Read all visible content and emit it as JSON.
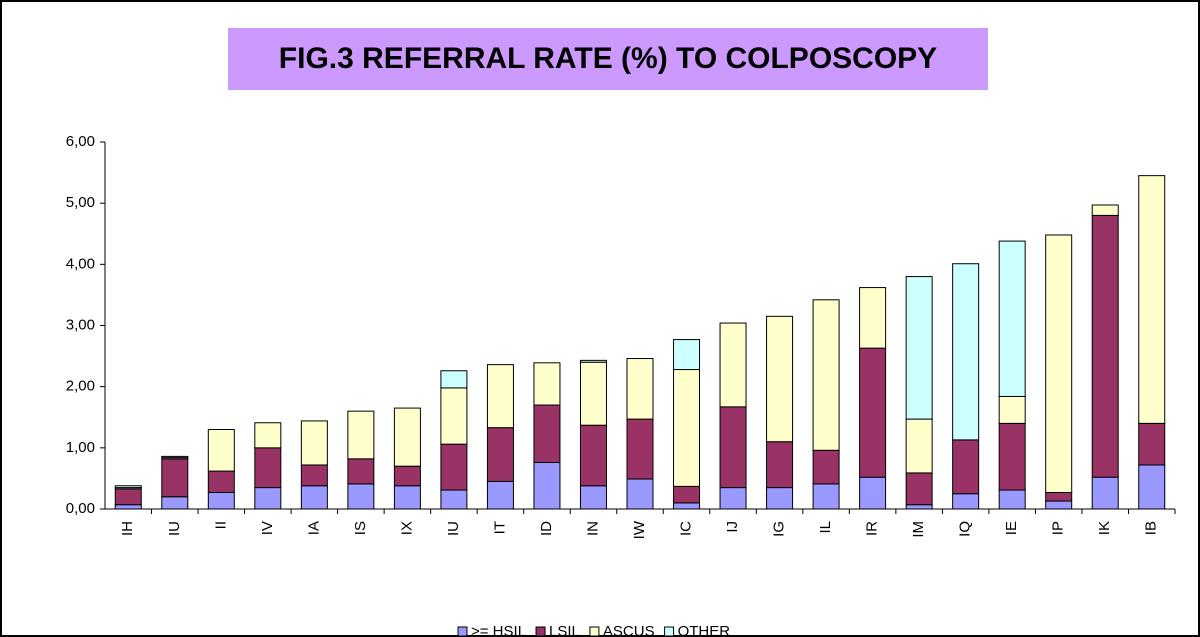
{
  "chart_data": {
    "type": "bar",
    "stacked": true,
    "title": "FIG.3 REFERRAL RATE (%) TO COLPOSCOPY",
    "categories": [
      "IH",
      "IU",
      "II",
      "IV",
      "IA",
      "IS",
      "IX",
      "IU",
      "IT",
      "ID",
      "IN",
      "IW",
      "IC",
      "IJ",
      "IG",
      "IL",
      "IR",
      "IM",
      "IQ",
      "IE",
      "IP",
      "IK",
      "IB"
    ],
    "series": [
      {
        "name": ">= HSIL",
        "color": "#9999ff",
        "values": [
          0.07,
          0.2,
          0.27,
          0.35,
          0.38,
          0.41,
          0.38,
          0.31,
          0.45,
          0.76,
          0.38,
          0.49,
          0.1,
          0.35,
          0.35,
          0.41,
          0.52,
          0.07,
          0.25,
          0.31,
          0.13,
          0.52,
          0.72
        ]
      },
      {
        "name": "LSIL",
        "color": "#993366",
        "values": [
          0.26,
          0.62,
          0.35,
          0.65,
          0.34,
          0.41,
          0.32,
          0.75,
          0.88,
          0.94,
          0.99,
          0.98,
          0.27,
          1.32,
          0.75,
          0.55,
          2.11,
          0.52,
          0.88,
          1.09,
          0.14,
          4.28,
          0.68
        ]
      },
      {
        "name": "ASCUS",
        "color": "#ffffcc",
        "values": [
          0.02,
          0.02,
          0.68,
          0.41,
          0.72,
          0.78,
          0.95,
          0.92,
          1.03,
          0.69,
          1.03,
          0.99,
          1.91,
          1.37,
          2.05,
          2.46,
          0.99,
          0.88,
          0,
          0.44,
          4.21,
          0.17,
          4.05
        ]
      },
      {
        "name": "OTHER",
        "color": "#ccffff",
        "values": [
          0.03,
          0.02,
          0,
          0,
          0,
          0,
          0,
          0.28,
          0,
          0,
          0.03,
          0,
          0.49,
          0,
          0,
          0,
          0,
          2.33,
          2.88,
          2.54,
          0,
          0,
          0
        ]
      }
    ],
    "ylim": [
      0,
      6
    ],
    "yticks": [
      {
        "value": 0,
        "label": "0,00"
      },
      {
        "value": 1,
        "label": "1,00"
      },
      {
        "value": 2,
        "label": "2,00"
      },
      {
        "value": 3,
        "label": "3,00"
      },
      {
        "value": 4,
        "label": "4,00"
      },
      {
        "value": 5,
        "label": "5,00"
      },
      {
        "value": 6,
        "label": "6,00"
      }
    ],
    "grid": false
  }
}
